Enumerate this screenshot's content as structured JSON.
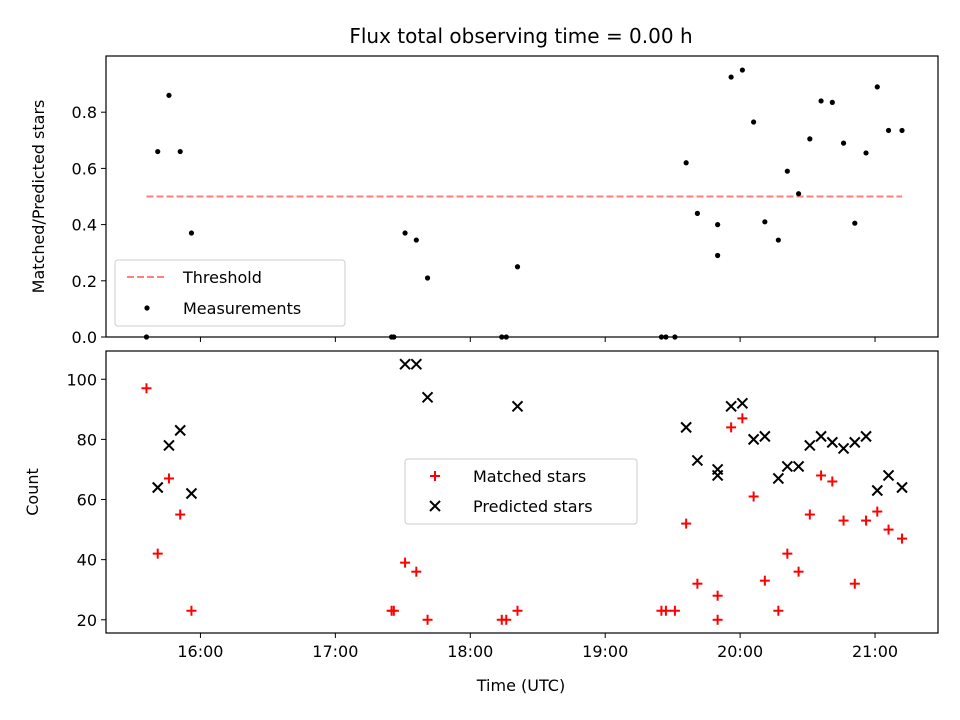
{
  "chart_data": [
    {
      "type": "scatter",
      "title": "Flux total observing time = 0.00 h",
      "xlabel": "",
      "ylabel": "Matched/Predicted stars",
      "xlim": [
        "15:18",
        "21:28"
      ],
      "ylim": [
        0,
        1.0
      ],
      "yticks": [
        0.0,
        0.2,
        0.4,
        0.6,
        0.8
      ],
      "ytick_labels": [
        "0.0",
        "0.2",
        "0.4",
        "0.6",
        "0.8"
      ],
      "xticks": [
        "16:00",
        "17:00",
        "18:00",
        "19:00",
        "20:00",
        "21:00"
      ],
      "xtick_labels_visible": false,
      "grid": false,
      "legend_position": "lower-left",
      "colors": {
        "threshold": "#ff7f7f",
        "measurements": "#000000"
      },
      "series": [
        {
          "name": "Threshold",
          "kind": "dashed-line",
          "points": [
            [
              "15:36",
              0.5
            ],
            [
              "21:12",
              0.5
            ]
          ]
        },
        {
          "name": "Measurements",
          "kind": "points",
          "points": [
            [
              "15:36",
              0.0
            ],
            [
              "15:41",
              0.66
            ],
            [
              "15:46",
              0.86
            ],
            [
              "15:51",
              0.66
            ],
            [
              "15:56",
              0.37
            ],
            [
              "17:25",
              0.0
            ],
            [
              "17:26",
              0.0
            ],
            [
              "17:31",
              0.37
            ],
            [
              "17:36",
              0.345
            ],
            [
              "17:41",
              0.21
            ],
            [
              "18:14",
              0.0
            ],
            [
              "18:16",
              0.0
            ],
            [
              "18:21",
              0.25
            ],
            [
              "19:25",
              0.0
            ],
            [
              "19:27",
              0.0
            ],
            [
              "19:31",
              0.0
            ],
            [
              "19:36",
              0.62
            ],
            [
              "19:41",
              0.44
            ],
            [
              "19:50",
              0.4
            ],
            [
              "19:50",
              0.29
            ],
            [
              "19:56",
              0.925
            ],
            [
              "20:01",
              0.95
            ],
            [
              "20:06",
              0.765
            ],
            [
              "20:11",
              0.41
            ],
            [
              "20:17",
              0.345
            ],
            [
              "20:21",
              0.59
            ],
            [
              "20:26",
              0.51
            ],
            [
              "20:31",
              0.705
            ],
            [
              "20:36",
              0.84
            ],
            [
              "20:41",
              0.835
            ],
            [
              "20:46",
              0.69
            ],
            [
              "20:51",
              0.405
            ],
            [
              "20:56",
              0.655
            ],
            [
              "21:01",
              0.89
            ],
            [
              "21:06",
              0.735
            ],
            [
              "21:12",
              0.735
            ]
          ]
        }
      ]
    },
    {
      "type": "scatter",
      "title": "",
      "xlabel": "Time (UTC)",
      "ylabel": "Count",
      "xlim": [
        "15:18",
        "21:28"
      ],
      "ylim": [
        15.6,
        109.4
      ],
      "yticks": [
        20,
        40,
        60,
        80,
        100
      ],
      "ytick_labels": [
        "20",
        "40",
        "60",
        "80",
        "100"
      ],
      "xticks": [
        "16:00",
        "17:00",
        "18:00",
        "19:00",
        "20:00",
        "21:00"
      ],
      "xtick_labels": [
        "16:00",
        "17:00",
        "18:00",
        "19:00",
        "20:00",
        "21:00"
      ],
      "grid": false,
      "legend_position": "center",
      "colors": {
        "matched": "#ff0000",
        "predicted": "#000000"
      },
      "series": [
        {
          "name": "Matched stars",
          "marker": "plus",
          "points": [
            [
              "15:36",
              97
            ],
            [
              "15:41",
              42
            ],
            [
              "15:46",
              67
            ],
            [
              "15:51",
              55
            ],
            [
              "15:56",
              23
            ],
            [
              "17:25",
              23
            ],
            [
              "17:26",
              23
            ],
            [
              "17:31",
              39
            ],
            [
              "17:36",
              36
            ],
            [
              "17:41",
              20
            ],
            [
              "18:14",
              20
            ],
            [
              "18:16",
              20
            ],
            [
              "18:21",
              23
            ],
            [
              "19:25",
              23
            ],
            [
              "19:27",
              23
            ],
            [
              "19:31",
              23
            ],
            [
              "19:36",
              52
            ],
            [
              "19:41",
              32
            ],
            [
              "19:50",
              28
            ],
            [
              "19:50",
              20
            ],
            [
              "19:56",
              84
            ],
            [
              "20:01",
              87
            ],
            [
              "20:06",
              61
            ],
            [
              "20:11",
              33
            ],
            [
              "20:17",
              23
            ],
            [
              "20:21",
              42
            ],
            [
              "20:26",
              36
            ],
            [
              "20:31",
              55
            ],
            [
              "20:36",
              68
            ],
            [
              "20:41",
              66
            ],
            [
              "20:46",
              53
            ],
            [
              "20:51",
              32
            ],
            [
              "20:56",
              53
            ],
            [
              "21:01",
              56
            ],
            [
              "21:06",
              50
            ],
            [
              "21:12",
              47
            ]
          ]
        },
        {
          "name": "Predicted stars",
          "marker": "x",
          "points": [
            [
              "15:41",
              64
            ],
            [
              "15:46",
              78
            ],
            [
              "15:51",
              83
            ],
            [
              "15:56",
              62
            ],
            [
              "17:31",
              105
            ],
            [
              "17:36",
              105
            ],
            [
              "17:41",
              94
            ],
            [
              "18:21",
              91
            ],
            [
              "19:36",
              84
            ],
            [
              "19:41",
              73
            ],
            [
              "19:50",
              70
            ],
            [
              "19:50",
              68
            ],
            [
              "19:56",
              91
            ],
            [
              "20:01",
              92
            ],
            [
              "20:06",
              80
            ],
            [
              "20:11",
              81
            ],
            [
              "20:17",
              67
            ],
            [
              "20:21",
              71
            ],
            [
              "20:26",
              71
            ],
            [
              "20:31",
              78
            ],
            [
              "20:36",
              81
            ],
            [
              "20:41",
              79
            ],
            [
              "20:46",
              77
            ],
            [
              "20:51",
              79
            ],
            [
              "20:56",
              81
            ],
            [
              "21:01",
              63
            ],
            [
              "21:06",
              68
            ],
            [
              "21:12",
              64
            ]
          ]
        }
      ]
    }
  ]
}
